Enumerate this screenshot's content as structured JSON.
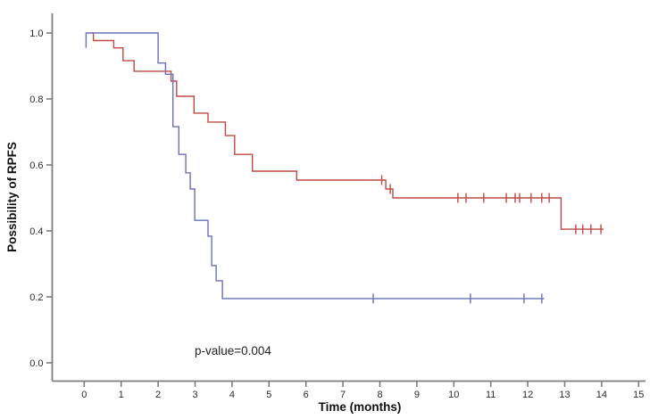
{
  "chart_data": {
    "type": "line",
    "chart_style": "kaplan-meier-step",
    "title": "",
    "xlabel": "Time (months)",
    "ylabel": "Possibility of RPFS",
    "annotation": "p-value=0.004",
    "x_ticks": [
      "0",
      "1",
      "2",
      "3",
      "4",
      "5",
      "6",
      "7",
      "8",
      "9",
      "10",
      "11",
      "12",
      "13",
      "14",
      "15"
    ],
    "y_ticks": [
      "0.0",
      "0.2",
      "0.4",
      "0.6",
      "0.8",
      "1.0"
    ],
    "xlim": [
      -0.9,
      15.4
    ],
    "ylim": [
      -0.06,
      1.06
    ],
    "grid": false,
    "legend": null,
    "axis_color": "#7d7d7d",
    "censor_marker": "plus-tick",
    "series": [
      {
        "name": "red-group",
        "color": "#bf4a44",
        "t_start": 0.2,
        "v_start": 1.0,
        "t_end": 14.05,
        "drops": [
          [
            0.25,
            0.977
          ],
          [
            0.8,
            0.955
          ],
          [
            1.05,
            0.916
          ],
          [
            1.35,
            0.884
          ],
          [
            2.35,
            0.854
          ],
          [
            2.5,
            0.808
          ],
          [
            2.97,
            0.757
          ],
          [
            3.35,
            0.73
          ],
          [
            3.82,
            0.689
          ],
          [
            4.07,
            0.632
          ],
          [
            4.55,
            0.581
          ],
          [
            5.75,
            0.554
          ],
          [
            8.16,
            0.527
          ],
          [
            8.35,
            0.5
          ],
          [
            12.9,
            0.405
          ]
        ],
        "censors": [
          [
            8.05,
            0.554
          ],
          [
            8.28,
            0.527
          ],
          [
            10.11,
            0.5
          ],
          [
            10.33,
            0.5
          ],
          [
            10.81,
            0.5
          ],
          [
            11.42,
            0.5
          ],
          [
            11.66,
            0.5
          ],
          [
            11.78,
            0.5
          ],
          [
            12.09,
            0.5
          ],
          [
            12.38,
            0.5
          ],
          [
            12.58,
            0.5
          ],
          [
            13.3,
            0.405
          ],
          [
            13.49,
            0.405
          ],
          [
            13.71,
            0.405
          ],
          [
            13.98,
            0.405
          ]
        ]
      },
      {
        "name": "blue-group",
        "color": "#6a70b8",
        "t_start": 0.05,
        "v_start": 1.0,
        "onset_dip": 0.955,
        "t_end": 12.45,
        "drops": [
          [
            2.0,
            0.909
          ],
          [
            2.2,
            0.875
          ],
          [
            2.4,
            0.716
          ],
          [
            2.56,
            0.632
          ],
          [
            2.75,
            0.576
          ],
          [
            2.87,
            0.527
          ],
          [
            2.99,
            0.432
          ],
          [
            3.35,
            0.384
          ],
          [
            3.45,
            0.295
          ],
          [
            3.57,
            0.249
          ],
          [
            3.74,
            0.195
          ]
        ],
        "censors": [
          [
            7.82,
            0.195
          ],
          [
            10.45,
            0.195
          ],
          [
            11.9,
            0.195
          ],
          [
            12.38,
            0.195
          ]
        ]
      }
    ]
  }
}
